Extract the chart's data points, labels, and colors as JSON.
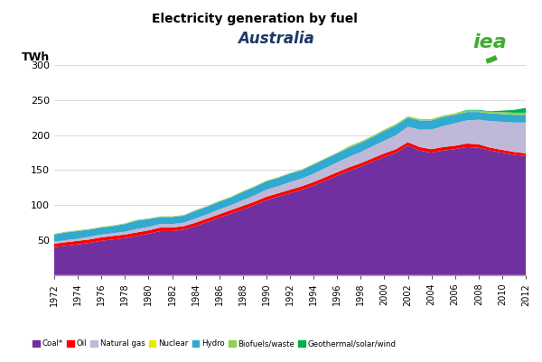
{
  "title": "Electricity generation by fuel",
  "subtitle": "Australia",
  "ylabel": "TWh",
  "years": [
    1972,
    1973,
    1974,
    1975,
    1976,
    1977,
    1978,
    1979,
    1980,
    1981,
    1982,
    1983,
    1984,
    1985,
    1986,
    1987,
    1988,
    1989,
    1990,
    1991,
    1992,
    1993,
    1994,
    1995,
    1996,
    1997,
    1998,
    1999,
    2000,
    2001,
    2002,
    2003,
    2004,
    2005,
    2006,
    2007,
    2008,
    2009,
    2010,
    2011,
    2012
  ],
  "coal": [
    40,
    42,
    44,
    46,
    49,
    51,
    53,
    56,
    59,
    63,
    63,
    65,
    70,
    76,
    82,
    88,
    94,
    100,
    107,
    112,
    117,
    122,
    128,
    135,
    142,
    149,
    155,
    162,
    169,
    175,
    185,
    178,
    175,
    178,
    180,
    183,
    182,
    178,
    175,
    172,
    170
  ],
  "oil": [
    5,
    5,
    5,
    5,
    5,
    5,
    5,
    5,
    5,
    5,
    5,
    5,
    5,
    5,
    5,
    5,
    5,
    5,
    5,
    5,
    5,
    5,
    5,
    5,
    5,
    5,
    5,
    5,
    5,
    5,
    5,
    5,
    5,
    5,
    5,
    5,
    5,
    4,
    4,
    4,
    4
  ],
  "gas": [
    3,
    3,
    3,
    4,
    4,
    4,
    4,
    5,
    5,
    5,
    5,
    5,
    6,
    6,
    7,
    7,
    8,
    9,
    10,
    10,
    11,
    11,
    12,
    13,
    14,
    15,
    16,
    17,
    18,
    20,
    22,
    25,
    28,
    30,
    32,
    33,
    35,
    38,
    40,
    42,
    44
  ],
  "nuclear": [
    0,
    0,
    0,
    0,
    0,
    0,
    0,
    0,
    0,
    0,
    0,
    0,
    0,
    0,
    0,
    0,
    0,
    0,
    0,
    0,
    0,
    0,
    0,
    0,
    0,
    0,
    0,
    0,
    0,
    0,
    0,
    0,
    0,
    0,
    0,
    0,
    0,
    0,
    0,
    0,
    0
  ],
  "hydro": [
    10,
    11,
    11,
    10,
    10,
    10,
    11,
    12,
    11,
    10,
    10,
    10,
    11,
    11,
    11,
    11,
    12,
    12,
    12,
    12,
    12,
    12,
    13,
    13,
    13,
    13,
    13,
    13,
    14,
    14,
    13,
    13,
    13,
    13,
    12,
    12,
    11,
    11,
    11,
    11,
    11
  ],
  "biofuels": [
    1,
    1,
    1,
    1,
    1,
    1,
    1,
    1,
    1,
    1,
    1,
    1,
    1,
    1,
    1,
    1,
    1,
    1,
    1,
    1,
    1,
    1,
    1,
    1,
    1,
    2,
    2,
    2,
    2,
    2,
    2,
    2,
    2,
    2,
    2,
    2,
    2,
    2,
    3,
    3,
    3
  ],
  "geo_solar_wind": [
    0,
    0,
    0,
    0,
    0,
    0,
    0,
    0,
    0,
    0,
    0,
    0,
    0,
    0,
    0,
    0,
    0,
    0,
    0,
    0,
    0,
    0,
    0,
    0,
    0,
    0,
    0,
    0,
    0,
    0,
    0,
    0,
    0,
    0,
    0,
    1,
    1,
    1,
    2,
    4,
    7
  ],
  "colors": {
    "coal": "#7030a0",
    "oil": "#ff0000",
    "gas": "#c0b8d8",
    "nuclear": "#e8e800",
    "hydro": "#31a9d0",
    "biofuels": "#92d050",
    "geo_solar_wind": "#00b050"
  },
  "legend_labels": [
    "Coal*",
    "Oil",
    "Natural gas",
    "Nuclear",
    "Hydro",
    "Biofuels/waste",
    "Geothermal/solar/wind"
  ],
  "ylim": [
    0,
    300
  ],
  "yticks": [
    0,
    50,
    100,
    150,
    200,
    250,
    300
  ],
  "xlim": [
    1972,
    2012
  ],
  "background_color": "#ffffff",
  "title_color": "#000000",
  "subtitle_color": "#1f3864",
  "ylabel_color": "#000000",
  "iea_color": "#3dae2b"
}
